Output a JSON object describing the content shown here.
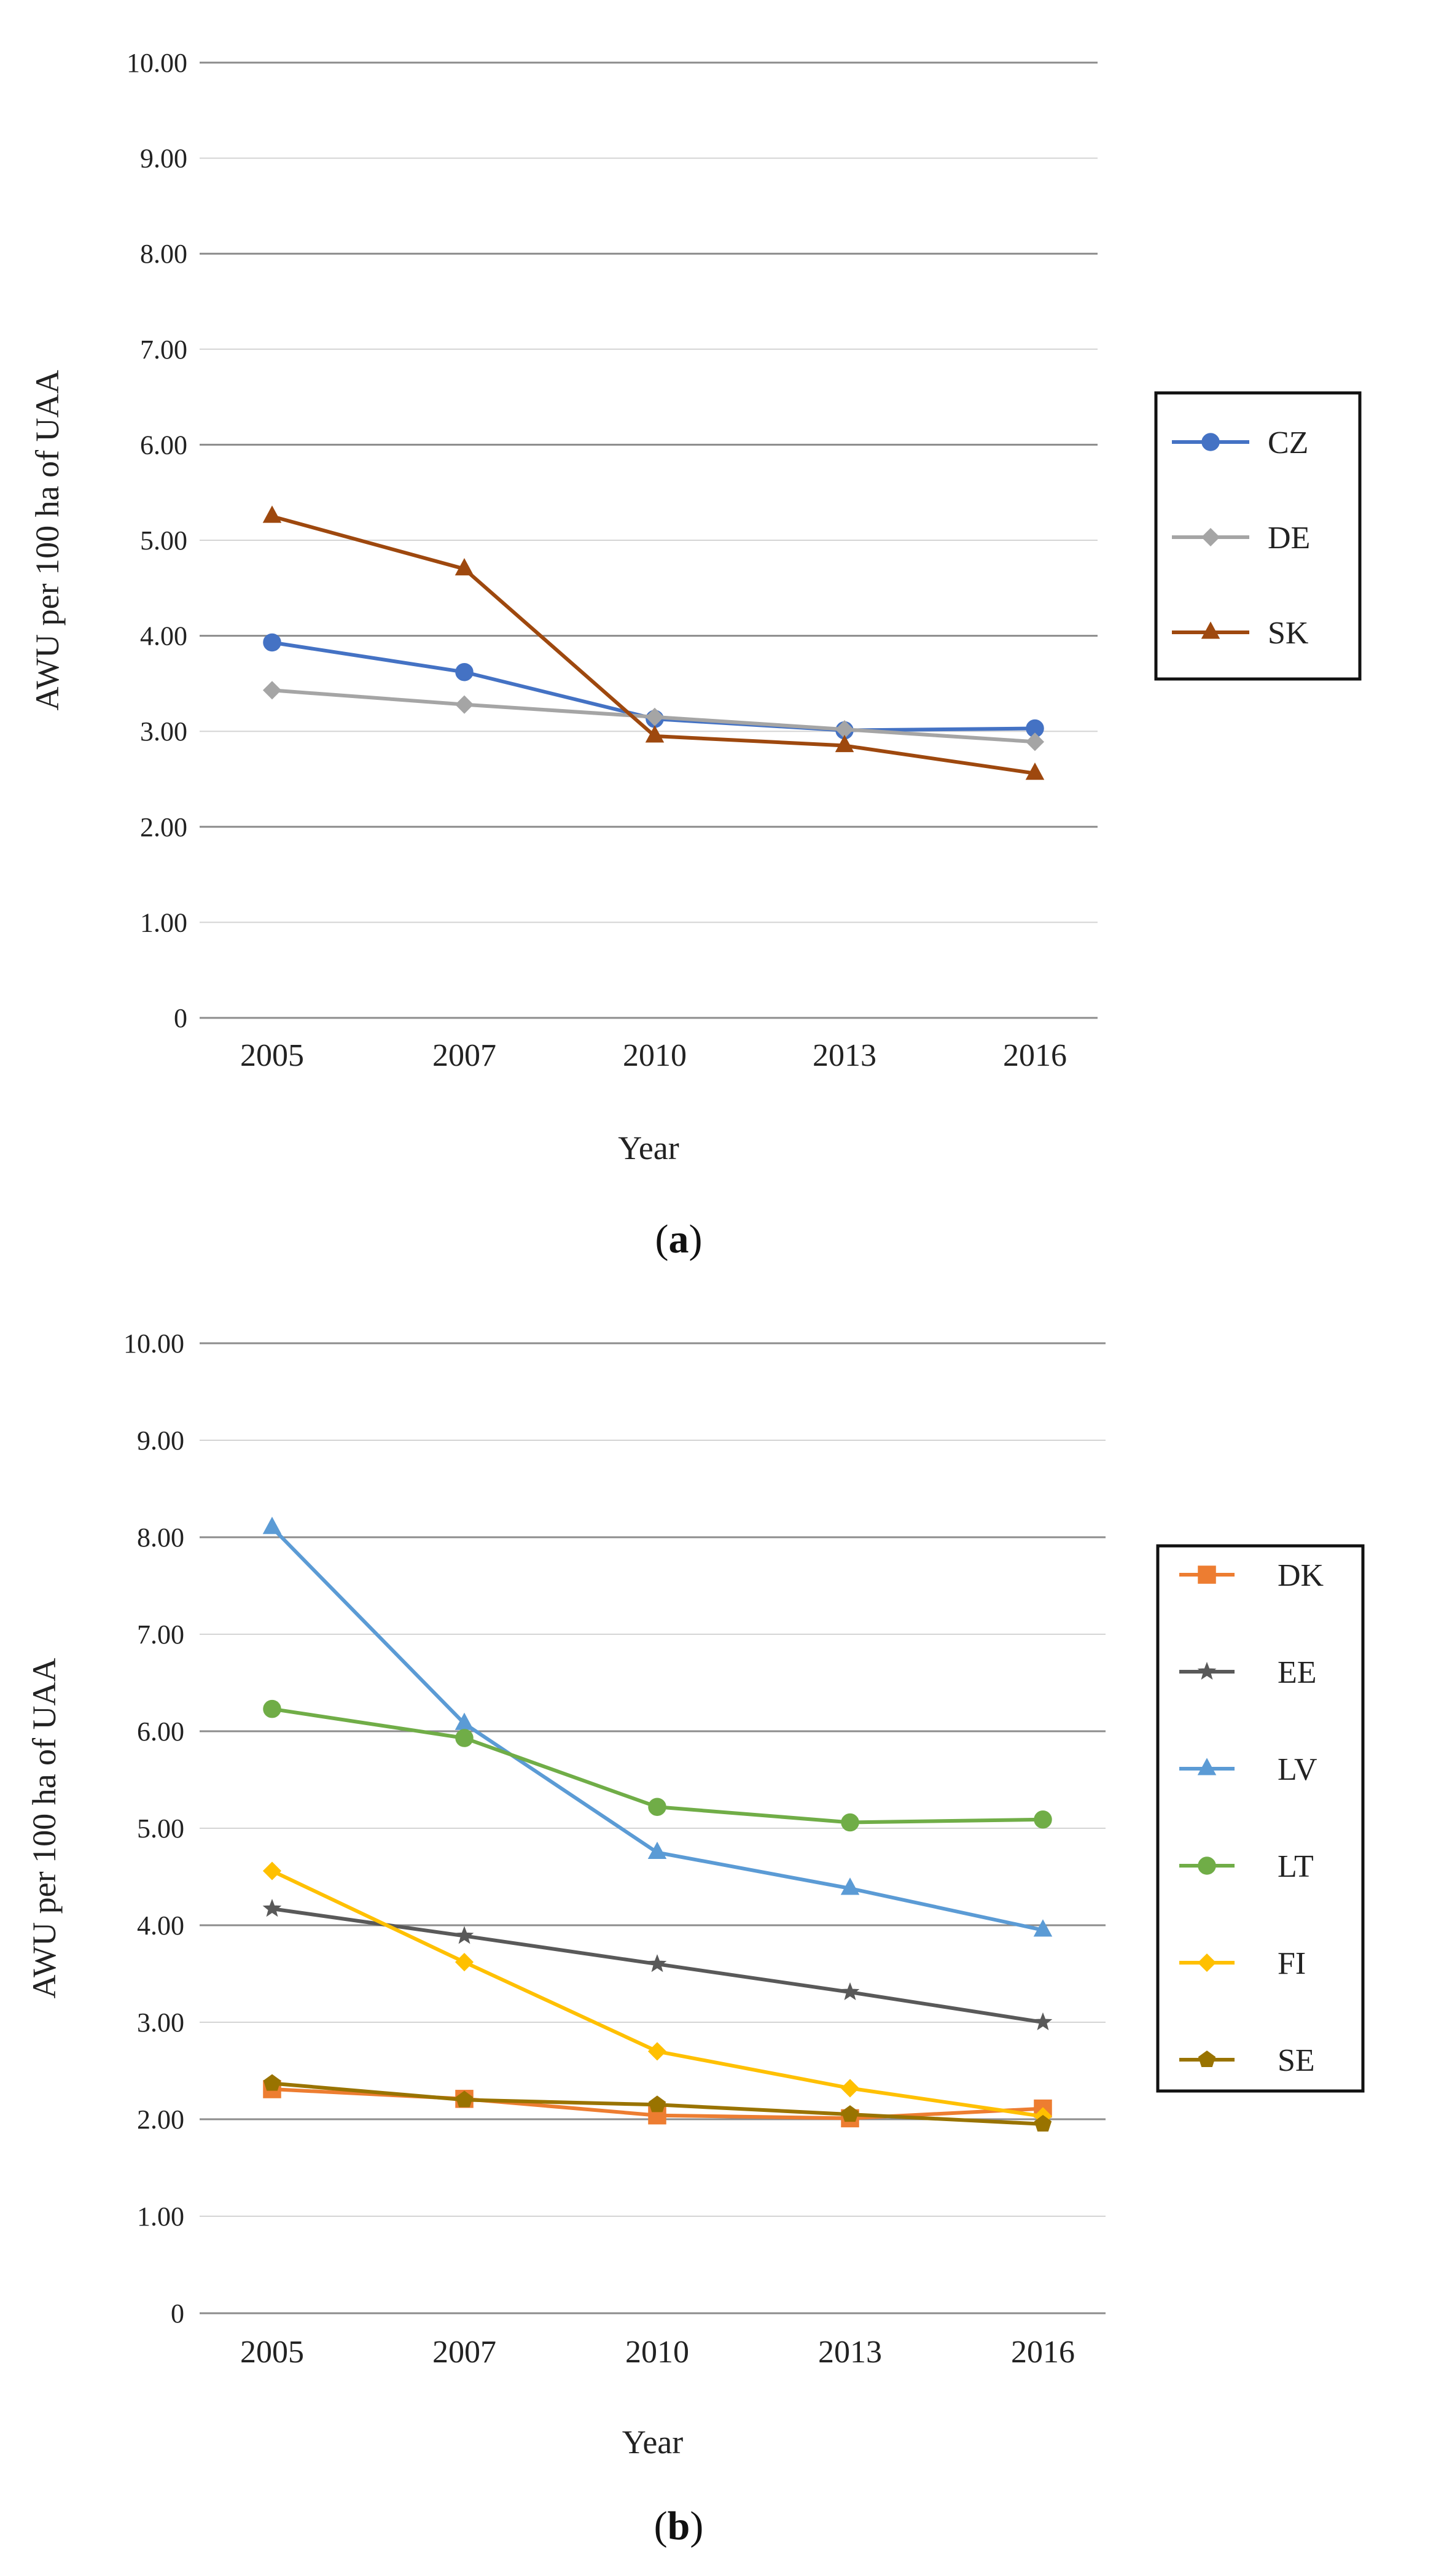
{
  "chart_data": [
    {
      "type": "line",
      "caption": "a",
      "xlabel": "Year",
      "ylabel": "AWU per 100 ha of UAA",
      "categories": [
        "2005",
        "2007",
        "2010",
        "2013",
        "2016"
      ],
      "ylim": [
        0,
        10
      ],
      "yticks": [
        "0",
        "1.00",
        "2.00",
        "3.00",
        "4.00",
        "5.00",
        "6.00",
        "7.00",
        "8.00",
        "9.00",
        "10.00"
      ],
      "legend_position": "right",
      "series": [
        {
          "name": "CZ",
          "color": "#4472c4",
          "marker": "circle",
          "values": [
            3.93,
            3.62,
            3.13,
            3.01,
            3.03
          ]
        },
        {
          "name": "DE",
          "color": "#a5a5a5",
          "marker": "diamond",
          "values": [
            3.43,
            3.28,
            3.15,
            3.02,
            2.89
          ]
        },
        {
          "name": "SK",
          "color": "#9e480e",
          "marker": "triangle",
          "values": [
            5.25,
            4.7,
            2.95,
            2.85,
            2.56
          ]
        }
      ]
    },
    {
      "type": "line",
      "caption": "b",
      "xlabel": "Year",
      "ylabel": "AWU per 100 ha of UAA",
      "categories": [
        "2005",
        "2007",
        "2010",
        "2013",
        "2016"
      ],
      "ylim": [
        0,
        10
      ],
      "yticks": [
        "0",
        "1.00",
        "2.00",
        "3.00",
        "4.00",
        "5.00",
        "6.00",
        "7.00",
        "8.00",
        "9.00",
        "10.00"
      ],
      "legend_position": "right",
      "series": [
        {
          "name": "DK",
          "color": "#ed7d31",
          "marker": "square",
          "values": [
            2.31,
            2.21,
            2.04,
            2.01,
            2.11
          ]
        },
        {
          "name": "EE",
          "color": "#595959",
          "marker": "star",
          "values": [
            4.17,
            3.89,
            3.6,
            3.31,
            3.0
          ]
        },
        {
          "name": "LV",
          "color": "#5b9bd5",
          "marker": "triangle",
          "values": [
            8.1,
            6.08,
            4.75,
            4.38,
            3.95
          ]
        },
        {
          "name": "LT",
          "color": "#70ad47",
          "marker": "circle",
          "values": [
            6.23,
            5.93,
            5.22,
            5.06,
            5.09
          ]
        },
        {
          "name": "FI",
          "color": "#ffc000",
          "marker": "diamond",
          "values": [
            4.56,
            3.62,
            2.7,
            2.32,
            2.03
          ]
        },
        {
          "name": "SE",
          "color": "#997300",
          "marker": "pentagon",
          "values": [
            2.37,
            2.2,
            2.15,
            2.05,
            1.95
          ]
        }
      ]
    }
  ]
}
